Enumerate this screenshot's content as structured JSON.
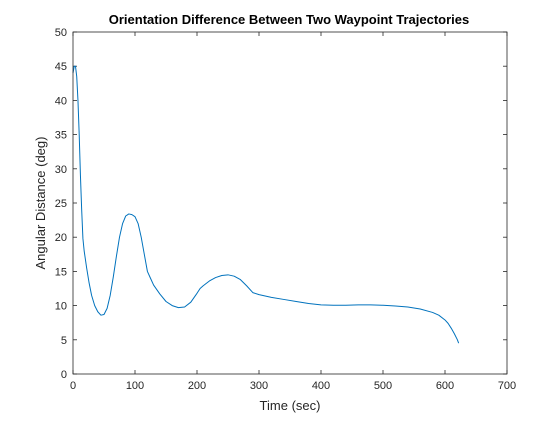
{
  "chart_data": {
    "type": "line",
    "title": "Orientation Difference Between Two Waypoint Trajectories",
    "xlabel": "Time (sec)",
    "ylabel": "Angular Distance (deg)",
    "xlim": [
      0,
      700
    ],
    "ylim": [
      0,
      50
    ],
    "xticks": [
      0,
      100,
      200,
      300,
      400,
      500,
      600,
      700
    ],
    "yticks": [
      0,
      5,
      10,
      15,
      20,
      25,
      30,
      35,
      40,
      45,
      50
    ],
    "grid": false,
    "box": true,
    "series": [
      {
        "color": "#0072BD",
        "x": [
          0,
          2,
          4,
          6,
          8,
          10,
          12,
          14,
          16,
          18,
          22,
          26,
          30,
          35,
          40,
          45,
          50,
          55,
          60,
          65,
          70,
          75,
          80,
          85,
          90,
          95,
          100,
          105,
          110,
          115,
          120,
          125,
          130,
          140,
          150,
          160,
          170,
          180,
          190,
          200,
          205,
          210,
          220,
          230,
          240,
          250,
          260,
          270,
          280,
          290,
          300,
          320,
          340,
          360,
          380,
          400,
          420,
          440,
          460,
          480,
          500,
          520,
          540,
          560,
          580,
          590,
          600,
          605,
          610,
          615,
          620,
          622
        ],
        "y": [
          44.0,
          45.0,
          45.0,
          43.5,
          40.0,
          35.0,
          29.0,
          24.0,
          19.8,
          18.0,
          15.5,
          13.3,
          11.5,
          10.0,
          9.1,
          8.6,
          8.7,
          9.6,
          11.5,
          14.2,
          17.2,
          20.0,
          22.0,
          23.1,
          23.4,
          23.3,
          23.0,
          22.0,
          20.0,
          17.5,
          15.0,
          14.0,
          13.0,
          11.7,
          10.6,
          10.0,
          9.7,
          9.8,
          10.5,
          11.8,
          12.5,
          12.9,
          13.6,
          14.1,
          14.4,
          14.5,
          14.3,
          13.8,
          12.9,
          11.9,
          11.6,
          11.2,
          10.9,
          10.6,
          10.3,
          10.1,
          10.05,
          10.05,
          10.1,
          10.1,
          10.05,
          9.95,
          9.8,
          9.5,
          9.0,
          8.6,
          7.9,
          7.4,
          6.7,
          5.9,
          5.0,
          4.5
        ]
      }
    ]
  }
}
